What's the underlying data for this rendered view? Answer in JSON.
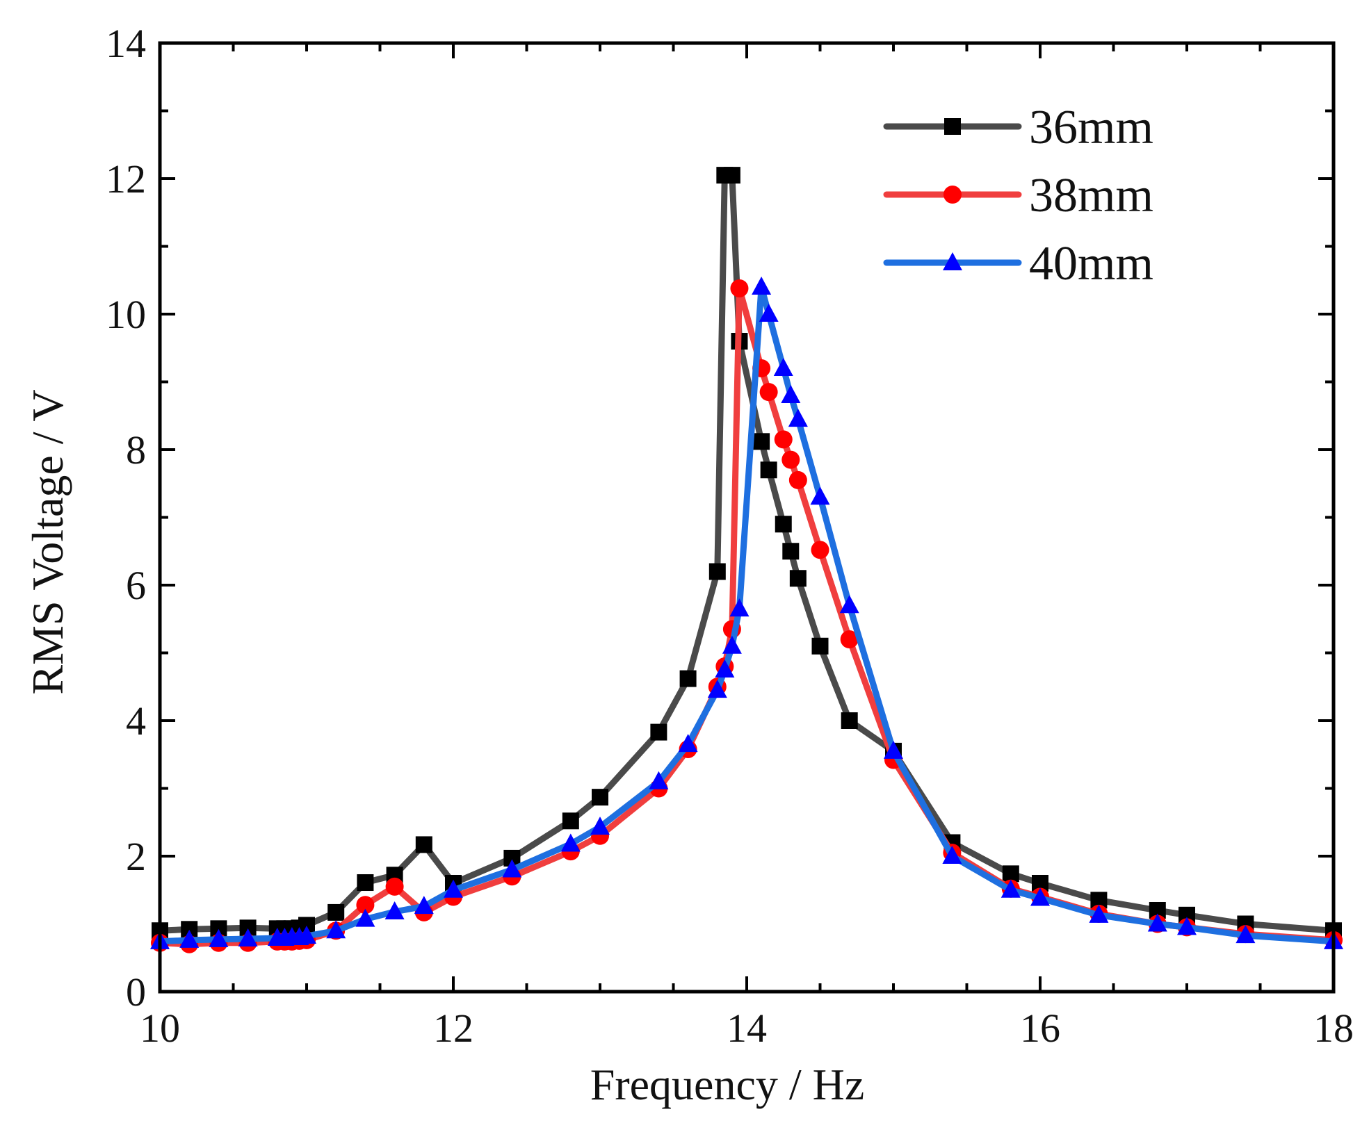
{
  "chart_data": {
    "type": "line",
    "title": "",
    "xlabel": "Frequency / Hz",
    "ylabel": "RMS Voltage / V",
    "xlim": [
      10,
      18
    ],
    "ylim": [
      0,
      14
    ],
    "xticks": [
      10,
      12,
      14,
      16,
      18
    ],
    "yticks": [
      0,
      2,
      4,
      6,
      8,
      10,
      12,
      14
    ],
    "grid": false,
    "legend_position": "top-right",
    "series": [
      {
        "name": "36mm",
        "color": "#4a4a4a",
        "marker": "square",
        "marker_color": "#000000",
        "x": [
          10,
          10.2,
          10.4,
          10.6,
          10.8,
          10.85,
          10.9,
          10.95,
          11,
          11.2,
          11.4,
          11.6,
          11.8,
          12,
          12.4,
          12.8,
          13,
          13.4,
          13.6,
          13.8,
          13.85,
          13.9,
          13.95,
          14.1,
          14.15,
          14.25,
          14.3,
          14.35,
          14.5,
          14.7,
          15,
          15.4,
          15.8,
          16,
          16.4,
          16.8,
          17,
          17.4,
          18
        ],
        "values": [
          0.9,
          0.92,
          0.93,
          0.94,
          0.93,
          0.93,
          0.93,
          0.94,
          0.98,
          1.17,
          1.61,
          1.72,
          2.17,
          1.6,
          1.97,
          2.52,
          2.87,
          3.83,
          4.62,
          6.2,
          12.05,
          12.05,
          9.6,
          8.12,
          7.7,
          6.9,
          6.5,
          6.1,
          5.1,
          4.0,
          3.55,
          2.2,
          1.74,
          1.6,
          1.35,
          1.2,
          1.13,
          1.0,
          0.9
        ]
      },
      {
        "name": "38mm",
        "color": "#f03e3e",
        "marker": "circle",
        "marker_color": "#ff0000",
        "x": [
          10,
          10.2,
          10.4,
          10.6,
          10.8,
          10.85,
          10.9,
          10.95,
          11,
          11.2,
          11.4,
          11.6,
          11.8,
          12,
          12.4,
          12.8,
          13,
          13.4,
          13.6,
          13.8,
          13.85,
          13.9,
          13.95,
          14.1,
          14.15,
          14.25,
          14.3,
          14.35,
          14.5,
          14.7,
          15,
          15.4,
          15.8,
          16,
          16.4,
          16.8,
          17,
          17.4,
          18
        ],
        "values": [
          0.72,
          0.7,
          0.72,
          0.72,
          0.74,
          0.74,
          0.74,
          0.75,
          0.76,
          0.9,
          1.28,
          1.55,
          1.17,
          1.4,
          1.7,
          2.07,
          2.3,
          3.0,
          3.58,
          4.5,
          4.8,
          5.35,
          10.38,
          9.2,
          8.85,
          8.15,
          7.85,
          7.55,
          6.52,
          5.2,
          3.42,
          2.05,
          1.52,
          1.4,
          1.15,
          1.0,
          0.95,
          0.85,
          0.76
        ]
      },
      {
        "name": "40mm",
        "color": "#1e6fe0",
        "marker": "triangle",
        "marker_color": "#0000ff",
        "x": [
          10,
          10.2,
          10.4,
          10.6,
          10.8,
          10.85,
          10.9,
          10.95,
          11,
          11.2,
          11.4,
          11.6,
          11.8,
          12,
          12.4,
          12.8,
          13,
          13.4,
          13.6,
          13.8,
          13.85,
          13.9,
          13.95,
          14.1,
          14.15,
          14.25,
          14.3,
          14.35,
          14.5,
          14.7,
          15,
          15.4,
          15.8,
          16,
          16.4,
          16.8,
          17,
          17.4,
          18
        ],
        "values": [
          0.74,
          0.76,
          0.77,
          0.78,
          0.79,
          0.79,
          0.8,
          0.8,
          0.82,
          0.9,
          1.07,
          1.18,
          1.26,
          1.5,
          1.8,
          2.18,
          2.43,
          3.1,
          3.65,
          4.45,
          4.75,
          5.1,
          5.65,
          10.4,
          10.0,
          9.2,
          8.8,
          8.45,
          7.3,
          5.7,
          3.55,
          2.0,
          1.5,
          1.38,
          1.13,
          1.0,
          0.95,
          0.83,
          0.74
        ]
      }
    ]
  }
}
